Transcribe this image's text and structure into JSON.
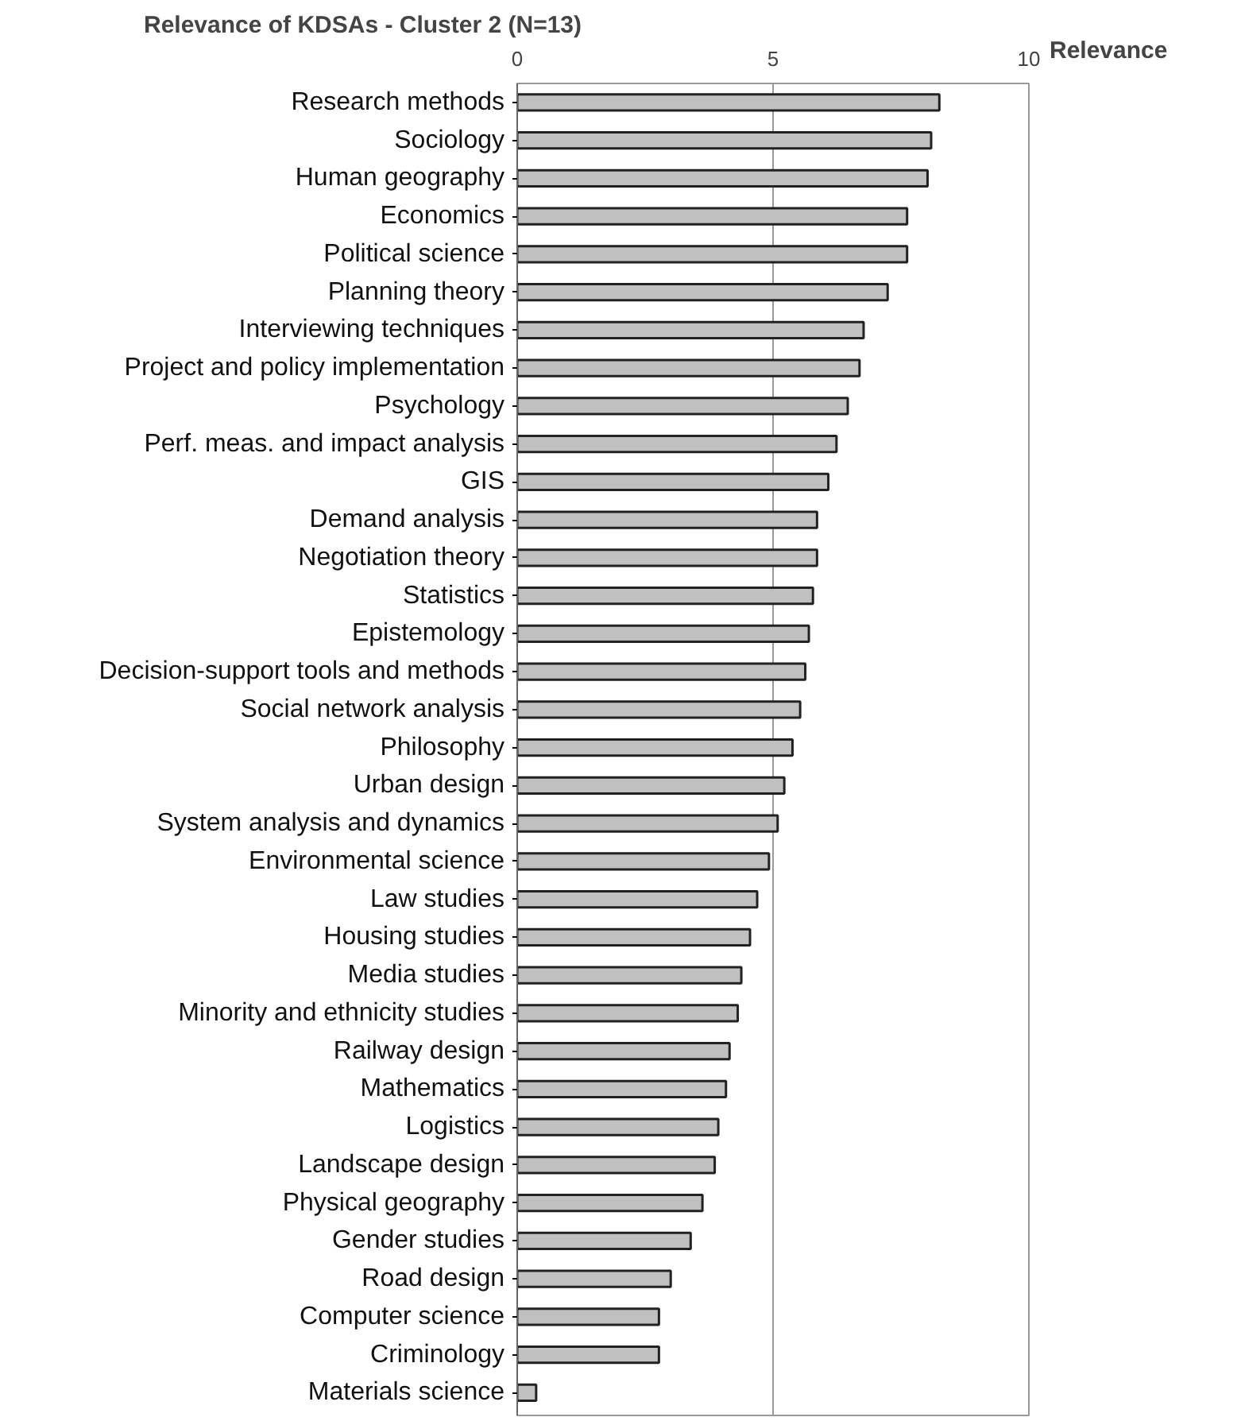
{
  "chart_data": {
    "type": "bar",
    "orientation": "horizontal",
    "title": "Relevance of KDSAs - Cluster 2 (N=13)",
    "xlabel": "Relevance",
    "categories": [
      "Research methods",
      "Sociology",
      "Human geography",
      "Economics",
      "Political science",
      "Planning theory",
      "Interviewing techniques",
      "Project and policy implementation",
      "Psychology",
      "Perf. meas. and impact analysis",
      "GIS",
      "Demand analysis",
      "Negotiation theory",
      "Statistics",
      "Epistemology",
      "Decision-support tools and methods",
      "Social network analysis",
      "Philosophy",
      "Urban design",
      "System analysis and dynamics",
      "Environmental science",
      "Law studies",
      "Housing studies",
      "Media studies",
      "Minority and ethnicity studies",
      "Railway design",
      "Mathematics",
      "Logistics",
      "Landscape design",
      "Physical geography",
      "Gender studies",
      "Road design",
      "Computer science",
      "Criminology",
      "Materials science"
    ],
    "values": [
      8.25,
      8.09,
      8.02,
      7.62,
      7.62,
      7.24,
      6.77,
      6.69,
      6.46,
      6.24,
      6.08,
      5.86,
      5.86,
      5.78,
      5.7,
      5.63,
      5.53,
      5.38,
      5.22,
      5.09,
      4.92,
      4.69,
      4.55,
      4.38,
      4.31,
      4.15,
      4.08,
      3.93,
      3.86,
      3.62,
      3.39,
      3.0,
      2.77,
      2.77,
      0.37
    ],
    "color": "#c0c0c0",
    "xlim": [
      0,
      10
    ],
    "xticks": [
      0,
      5,
      10
    ],
    "grid": "x"
  }
}
